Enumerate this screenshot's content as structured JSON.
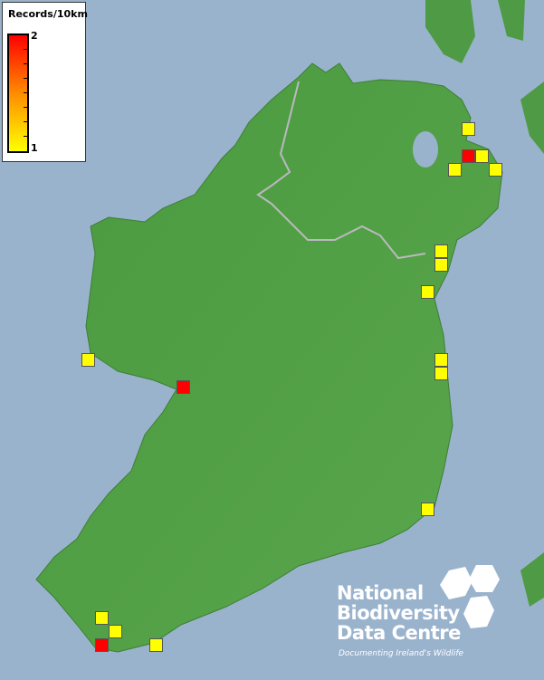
{
  "legend": {
    "title": "Records/10km",
    "max_label": "2",
    "min_label": "1",
    "color_max": "#ff0000",
    "color_min": "#ffff00"
  },
  "records": [
    {
      "value": 1
    },
    {
      "value": 2
    },
    {
      "value": 1
    },
    {
      "value": 1
    },
    {
      "value": 1
    },
    {
      "value": 1
    },
    {
      "value": 1
    },
    {
      "value": 1
    },
    {
      "value": 1
    },
    {
      "value": 1
    },
    {
      "value": 2
    },
    {
      "value": 1
    },
    {
      "value": 1
    },
    {
      "value": 1
    },
    {
      "value": 1
    },
    {
      "value": 2
    },
    {
      "value": 1
    }
  ],
  "logo": {
    "line1": "National",
    "line2": "Biodiversity",
    "line3": "Data Centre",
    "tagline": "Documenting Ireland's Wildlife"
  },
  "colors": {
    "sea": "#9ab3cd",
    "land": "#4f9a45"
  }
}
